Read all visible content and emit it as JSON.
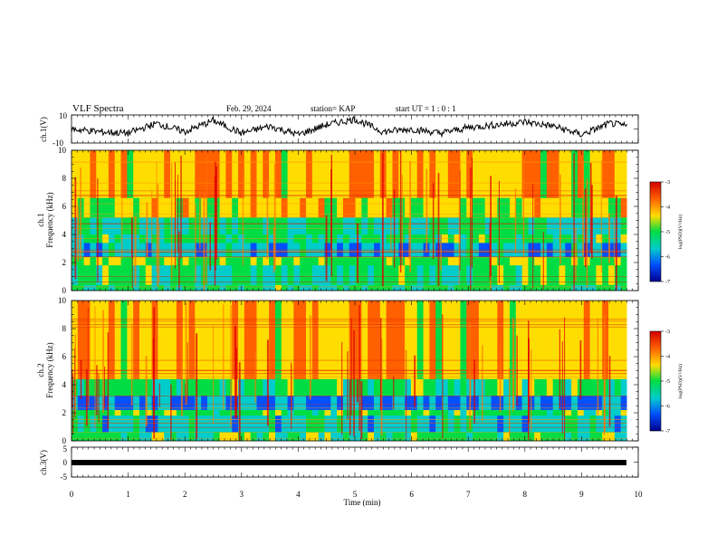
{
  "header": {
    "title": "VLF Spectra",
    "date": "Feb. 29, 2024",
    "station": "station= KAP",
    "start_ut": "start  UT =   1 : 0  : 1"
  },
  "ch1_wave": {
    "ylabel": "ch.1(V)",
    "ytick_top": "10",
    "ytick_bottom": "-10"
  },
  "spec1": {
    "ylabel_line1": "ch.1",
    "ylabel_line2": "Frequency  (kHz)",
    "yticks": [
      "0",
      "2",
      "4",
      "6",
      "8",
      "10"
    ]
  },
  "spec2": {
    "ylabel_line1": "ch.2",
    "ylabel_line2": "Frequency  (kHz)",
    "yticks": [
      "0",
      "2",
      "4",
      "6",
      "8",
      "10"
    ]
  },
  "ch3_wave": {
    "ylabel": "ch.3(V)",
    "yticks": [
      "5",
      "0",
      "-5"
    ]
  },
  "time_axis": {
    "xlabel": "Time  (min)",
    "xticks": [
      "0",
      "1",
      "2",
      "3",
      "4",
      "5",
      "6",
      "7",
      "8",
      "9",
      "10"
    ]
  },
  "colorbar": {
    "label": "log(PSD)(V²/Hz)",
    "ticks": [
      "-3",
      "-4",
      "-5",
      "-6",
      "-7"
    ],
    "colors": [
      "#d40000",
      "#ff6000",
      "#ffdd00",
      "#00dd44",
      "#00cccc",
      "#0050ff",
      "#000090"
    ]
  },
  "chart_data": [
    {
      "type": "line",
      "title": "VLF Spectra",
      "ylabel": "ch.1(V)",
      "xlabel": "Time  (min)",
      "xlim": [
        0,
        10
      ],
      "ylim": [
        -10,
        10
      ],
      "x": [
        0,
        0.5,
        1,
        1.5,
        2,
        2.5,
        3,
        3.5,
        4,
        4.5,
        5,
        5.5,
        6,
        6.5,
        7,
        7.5,
        8,
        8.5,
        9,
        9.5,
        9.8
      ],
      "values": [
        0,
        -2,
        -3,
        4,
        -2,
        6,
        -3,
        2,
        -4,
        3,
        7,
        -2,
        0,
        -3,
        1,
        3,
        5,
        2,
        -4,
        4,
        2
      ]
    },
    {
      "type": "heatmap",
      "ylabel": "Frequency  (kHz)",
      "xlabel": "Time  (min)",
      "xlim": [
        0,
        10
      ],
      "ylim": [
        0,
        10
      ],
      "colorbar_label": "log(PSD)(V²/Hz)",
      "colorbar_range": [
        -7,
        -3
      ],
      "bands_khz": [
        {
          "from": 0.0,
          "to": 0.4,
          "level": -5.2
        },
        {
          "from": 0.4,
          "to": 1.8,
          "level": -5.1
        },
        {
          "from": 1.8,
          "to": 2.4,
          "level": -4.8
        },
        {
          "from": 2.4,
          "to": 3.4,
          "level": -5.8
        },
        {
          "from": 3.4,
          "to": 4.0,
          "level": -5.1
        },
        {
          "from": 4.0,
          "to": 5.2,
          "level": -5.3
        },
        {
          "from": 5.2,
          "to": 6.6,
          "level": -4.4
        },
        {
          "from": 6.6,
          "to": 10.0,
          "level": -4.2
        }
      ]
    },
    {
      "type": "heatmap",
      "ylabel": "Frequency  (kHz)",
      "xlabel": "Time  (min)",
      "xlim": [
        0,
        10
      ],
      "ylim": [
        0,
        10
      ],
      "colorbar_label": "log(PSD)(V²/Hz)",
      "colorbar_range": [
        -7,
        -3
      ],
      "bands_khz": [
        {
          "from": 0.0,
          "to": 0.6,
          "level": -5.0
        },
        {
          "from": 0.6,
          "to": 1.8,
          "level": -5.6
        },
        {
          "from": 1.8,
          "to": 2.2,
          "level": -4.9
        },
        {
          "from": 2.2,
          "to": 3.2,
          "level": -6.1
        },
        {
          "from": 3.2,
          "to": 4.4,
          "level": -5.1
        },
        {
          "from": 4.4,
          "to": 10.0,
          "level": -4.2
        }
      ]
    },
    {
      "type": "line",
      "ylabel": "ch.3(V)",
      "xlabel": "Time  (min)",
      "xlim": [
        0,
        10
      ],
      "ylim": [
        -5,
        5
      ],
      "x": [
        0,
        9.8
      ],
      "values": [
        0,
        0
      ]
    }
  ]
}
